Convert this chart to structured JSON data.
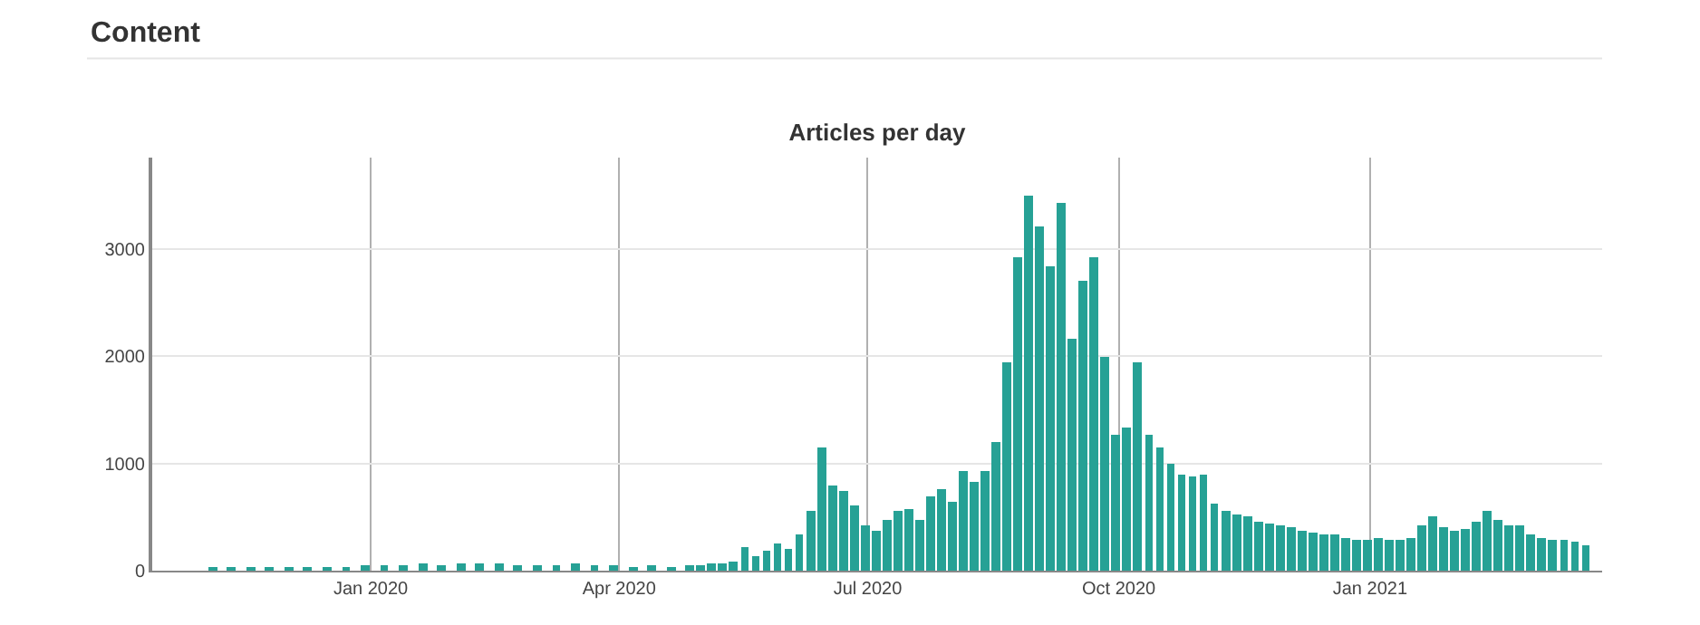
{
  "chart_data": {
    "type": "bar",
    "title": "Articles per day",
    "annotations": [
      "Content"
    ],
    "x": [
      "2019-11-04",
      "2019-11-11",
      "2019-11-18",
      "2019-11-25",
      "2019-12-02",
      "2019-12-09",
      "2019-12-16",
      "2019-12-23",
      "2019-12-30",
      "2020-01-06",
      "2020-01-13",
      "2020-01-20",
      "2020-01-27",
      "2020-02-03",
      "2020-02-10",
      "2020-02-17",
      "2020-02-24",
      "2020-03-02",
      "2020-03-09",
      "2020-03-16",
      "2020-03-23",
      "2020-03-30",
      "2020-04-06",
      "2020-04-13",
      "2020-04-20",
      "2020-04-27",
      "2020-05-01",
      "2020-05-05",
      "2020-05-09",
      "2020-05-13",
      "2020-05-17",
      "2020-05-21",
      "2020-05-25",
      "2020-05-29",
      "2020-06-02",
      "2020-06-06",
      "2020-06-10",
      "2020-06-14",
      "2020-06-18",
      "2020-06-22",
      "2020-06-26",
      "2020-06-30",
      "2020-07-04",
      "2020-07-08",
      "2020-07-12",
      "2020-07-16",
      "2020-07-20",
      "2020-07-24",
      "2020-07-28",
      "2020-08-01",
      "2020-08-05",
      "2020-08-09",
      "2020-08-13",
      "2020-08-17",
      "2020-08-21",
      "2020-08-25",
      "2020-08-29",
      "2020-09-02",
      "2020-09-06",
      "2020-09-10",
      "2020-09-14",
      "2020-09-18",
      "2020-09-22",
      "2020-09-26",
      "2020-09-30",
      "2020-10-04",
      "2020-10-08",
      "2020-10-12",
      "2020-10-16",
      "2020-10-20",
      "2020-10-24",
      "2020-10-28",
      "2020-11-01",
      "2020-11-05",
      "2020-11-09",
      "2020-11-13",
      "2020-11-17",
      "2020-11-21",
      "2020-11-25",
      "2020-11-29",
      "2020-12-03",
      "2020-12-07",
      "2020-12-11",
      "2020-12-15",
      "2020-12-19",
      "2020-12-23",
      "2020-12-27",
      "2020-12-31",
      "2021-01-04",
      "2021-01-08",
      "2021-01-12",
      "2021-01-16",
      "2021-01-20",
      "2021-01-24",
      "2021-01-28",
      "2021-02-01",
      "2021-02-05",
      "2021-02-09",
      "2021-02-13",
      "2021-02-17",
      "2021-02-21",
      "2021-02-25",
      "2021-03-01",
      "2021-03-05",
      "2021-03-09",
      "2021-03-13",
      "2021-03-17",
      "2021-03-21"
    ],
    "series": [
      {
        "color": "#26a195",
        "values": [
          30,
          30,
          30,
          40,
          40,
          40,
          40,
          40,
          50,
          50,
          50,
          60,
          50,
          60,
          70,
          60,
          50,
          50,
          50,
          60,
          50,
          50,
          40,
          50,
          40,
          50,
          50,
          70,
          60,
          90,
          220,
          130,
          180,
          260,
          210,
          330,
          550,
          1150,
          800,
          750,
          600,
          420,
          380,
          480,
          550,
          570,
          480,
          700,
          760,
          650,
          930,
          820,
          930,
          1200,
          1950,
          2920,
          3490,
          3200,
          2830,
          3420,
          2160,
          2700,
          2920,
          1990,
          1260,
          1340,
          1950,
          1260,
          1150,
          1000,
          890,
          880,
          890,
          620,
          560,
          520,
          500,
          460,
          440,
          420,
          400,
          380,
          360,
          340,
          330,
          310,
          280,
          290,
          300,
          280,
          290,
          300,
          420,
          500,
          400,
          380,
          390,
          450,
          560,
          470,
          430,
          420,
          330,
          300,
          290,
          280,
          270,
          240
        ]
      }
    ],
    "xlim": [
      "2019-10-13",
      "2021-03-27"
    ],
    "xticks": [
      {
        "value": "2020-01-01",
        "label": "Jan 2020"
      },
      {
        "value": "2020-04-01",
        "label": "Apr 2020"
      },
      {
        "value": "2020-07-01",
        "label": "Jul 2020"
      },
      {
        "value": "2020-10-01",
        "label": "Oct 2020"
      },
      {
        "value": "2021-01-01",
        "label": "Jan 2021"
      }
    ],
    "ylim": [
      0,
      3850
    ],
    "yticks": [
      0,
      1000,
      2000,
      3000
    ],
    "grid": true
  }
}
